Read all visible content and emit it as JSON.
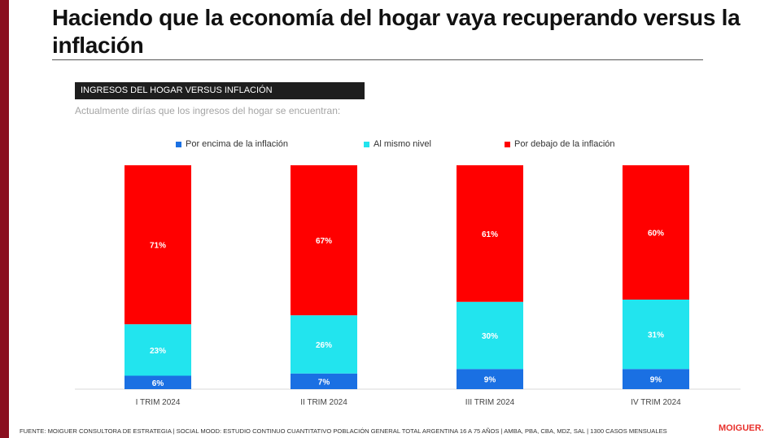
{
  "title": "Haciendo que la economía del hogar vaya recuperando versus la inflación",
  "section_label": "INGRESOS DEL HOGAR VERSUS INFLACIÓN",
  "question": "Actualmente dirías que los ingresos del hogar se encuentran:",
  "colors": {
    "above": "#1a70e3",
    "same": "#22e4ee",
    "below": "#ff0000",
    "accent": "#8a0f1f",
    "brand": "#e8312c"
  },
  "chart_data": {
    "type": "bar",
    "stacked": true,
    "categories": [
      "I TRIM 2024",
      "II TRIM 2024",
      "III TRIM 2024",
      "IV TRIM 2024"
    ],
    "series": [
      {
        "name": "Por encima de la inflación",
        "values": [
          6,
          7,
          9,
          9
        ],
        "labels": [
          "6%",
          "7%",
          "9%",
          "9%"
        ]
      },
      {
        "name": "Al mismo nivel",
        "values": [
          23,
          26,
          30,
          31
        ],
        "labels": [
          "23%",
          "26%",
          "30%",
          "31%"
        ]
      },
      {
        "name": "Por debajo de la inflación",
        "values": [
          71,
          67,
          61,
          60
        ],
        "labels": [
          "71%",
          "67%",
          "61%",
          "60%"
        ]
      }
    ],
    "ylim": [
      0,
      100
    ],
    "legend_position": "top",
    "grid": false
  },
  "footer": "FUENTE: MOIGUER CONSULTORA DE ESTRATEGIA | SOCIAL MOOD: ESTUDIO CONTINUO CUANTITATIVO POBLACIÓN GENERAL TOTAL ARGENTINA 16 A 75 AÑOS | AMBA, PBA, CBA, MDZ, SAL | 1300 CASOS MENSUALES",
  "brand": "MOIGUER."
}
